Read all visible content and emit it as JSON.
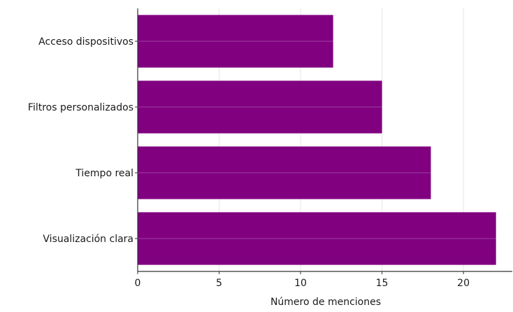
{
  "chart_data": {
    "type": "bar",
    "orientation": "horizontal",
    "categories": [
      "Acceso dispositivos",
      "Filtros personalizados",
      "Tiempo real",
      "Visualización clara"
    ],
    "values": [
      12,
      15,
      18,
      22
    ],
    "xlabel": "Número de menciones",
    "ylabel": "",
    "title": "",
    "xlim": [
      0,
      23
    ],
    "xticks": [
      0,
      5,
      10,
      15,
      20
    ],
    "grid": true,
    "bar_color": "#800080",
    "grid_color": "#e6e6e6",
    "axis_color": "#333333"
  }
}
